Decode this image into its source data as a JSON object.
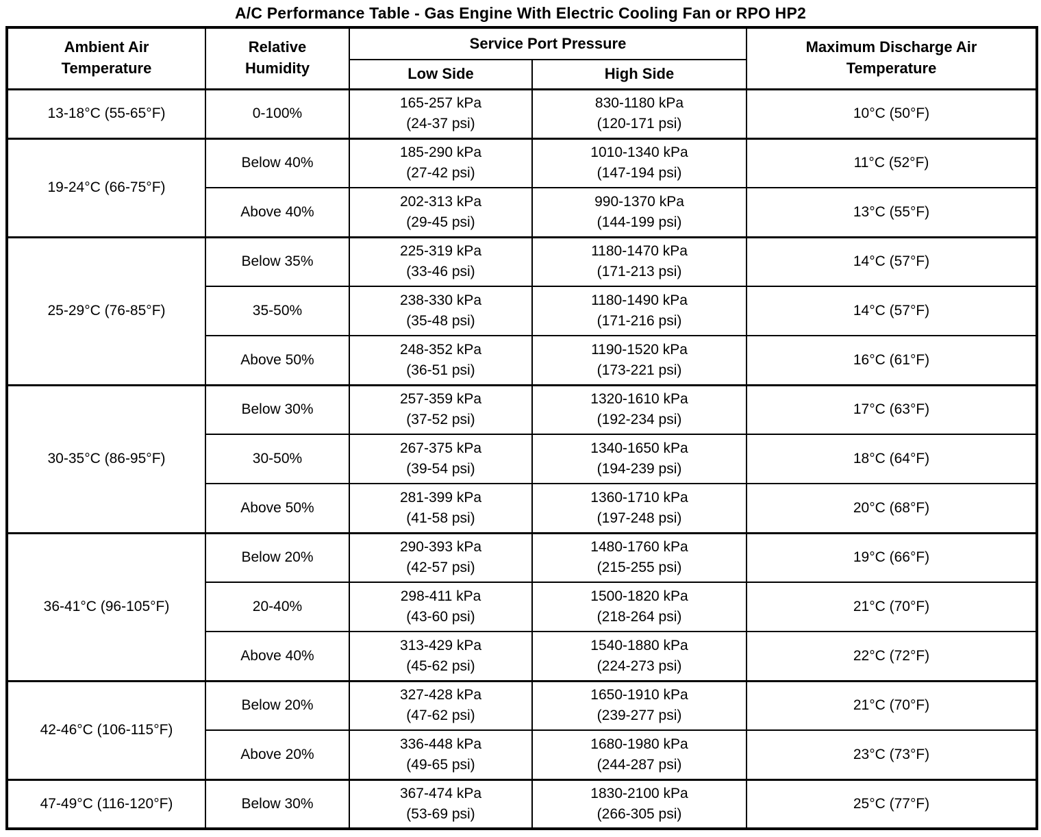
{
  "title": "A/C Performance Table - Gas Engine With Electric Cooling Fan or RPO HP2",
  "colors": {
    "border": "#000000",
    "background": "#ffffff",
    "text": "#000000"
  },
  "table": {
    "headers": {
      "ambient": "Ambient Air\nTemperature",
      "humidity": "Relative\nHumidity",
      "service_port": "Service Port Pressure",
      "low_side": "Low Side",
      "high_side": "High Side",
      "discharge": "Maximum Discharge Air\nTemperature"
    },
    "groups": [
      {
        "ambient": "13-18°C (55-65°F)",
        "rows": [
          {
            "humidity": "0-100%",
            "low_kpa": "165-257 kPa",
            "low_psi": "(24-37 psi)",
            "high_kpa": "830-1180 kPa",
            "high_psi": "(120-171 psi)",
            "discharge": "10°C (50°F)"
          }
        ]
      },
      {
        "ambient": "19-24°C (66-75°F)",
        "rows": [
          {
            "humidity": "Below 40%",
            "low_kpa": "185-290 kPa",
            "low_psi": "(27-42 psi)",
            "high_kpa": "1010-1340 kPa",
            "high_psi": "(147-194 psi)",
            "discharge": "11°C (52°F)"
          },
          {
            "humidity": "Above 40%",
            "low_kpa": "202-313 kPa",
            "low_psi": "(29-45 psi)",
            "high_kpa": "990-1370 kPa",
            "high_psi": "(144-199 psi)",
            "discharge": "13°C (55°F)"
          }
        ]
      },
      {
        "ambient": "25-29°C (76-85°F)",
        "rows": [
          {
            "humidity": "Below 35%",
            "low_kpa": "225-319 kPa",
            "low_psi": "(33-46 psi)",
            "high_kpa": "1180-1470 kPa",
            "high_psi": "(171-213 psi)",
            "discharge": "14°C (57°F)"
          },
          {
            "humidity": "35-50%",
            "low_kpa": "238-330 kPa",
            "low_psi": "(35-48 psi)",
            "high_kpa": "1180-1490 kPa",
            "high_psi": "(171-216 psi)",
            "discharge": "14°C (57°F)"
          },
          {
            "humidity": "Above 50%",
            "low_kpa": "248-352 kPa",
            "low_psi": "(36-51 psi)",
            "high_kpa": "1190-1520 kPa",
            "high_psi": "(173-221 psi)",
            "discharge": "16°C (61°F)"
          }
        ]
      },
      {
        "ambient": "30-35°C (86-95°F)",
        "rows": [
          {
            "humidity": "Below 30%",
            "low_kpa": "257-359 kPa",
            "low_psi": "(37-52 psi)",
            "high_kpa": "1320-1610 kPa",
            "high_psi": "(192-234 psi)",
            "discharge": "17°C (63°F)"
          },
          {
            "humidity": "30-50%",
            "low_kpa": "267-375 kPa",
            "low_psi": "(39-54 psi)",
            "high_kpa": "1340-1650 kPa",
            "high_psi": "(194-239 psi)",
            "discharge": "18°C (64°F)"
          },
          {
            "humidity": "Above 50%",
            "low_kpa": "281-399 kPa",
            "low_psi": "(41-58 psi)",
            "high_kpa": "1360-1710 kPa",
            "high_psi": "(197-248 psi)",
            "discharge": "20°C (68°F)"
          }
        ]
      },
      {
        "ambient": "36-41°C (96-105°F)",
        "rows": [
          {
            "humidity": "Below 20%",
            "low_kpa": "290-393 kPa",
            "low_psi": "(42-57 psi)",
            "high_kpa": "1480-1760 kPa",
            "high_psi": "(215-255 psi)",
            "discharge": "19°C (66°F)"
          },
          {
            "humidity": "20-40%",
            "low_kpa": "298-411 kPa",
            "low_psi": "(43-60 psi)",
            "high_kpa": "1500-1820 kPa",
            "high_psi": "(218-264 psi)",
            "discharge": "21°C (70°F)"
          },
          {
            "humidity": "Above 40%",
            "low_kpa": "313-429 kPa",
            "low_psi": "(45-62 psi)",
            "high_kpa": "1540-1880 kPa",
            "high_psi": "(224-273 psi)",
            "discharge": "22°C (72°F)"
          }
        ]
      },
      {
        "ambient": "42-46°C (106-115°F)",
        "rows": [
          {
            "humidity": "Below 20%",
            "low_kpa": "327-428 kPa",
            "low_psi": "(47-62 psi)",
            "high_kpa": "1650-1910 kPa",
            "high_psi": "(239-277 psi)",
            "discharge": "21°C (70°F)"
          },
          {
            "humidity": "Above 20%",
            "low_kpa": "336-448 kPa",
            "low_psi": "(49-65 psi)",
            "high_kpa": "1680-1980 kPa",
            "high_psi": "(244-287 psi)",
            "discharge": "23°C (73°F)"
          }
        ]
      },
      {
        "ambient": "47-49°C (116-120°F)",
        "rows": [
          {
            "humidity": "Below 30%",
            "low_kpa": "367-474 kPa",
            "low_psi": "(53-69 psi)",
            "high_kpa": "1830-2100 kPa",
            "high_psi": "(266-305 psi)",
            "discharge": "25°C (77°F)"
          }
        ]
      }
    ]
  }
}
